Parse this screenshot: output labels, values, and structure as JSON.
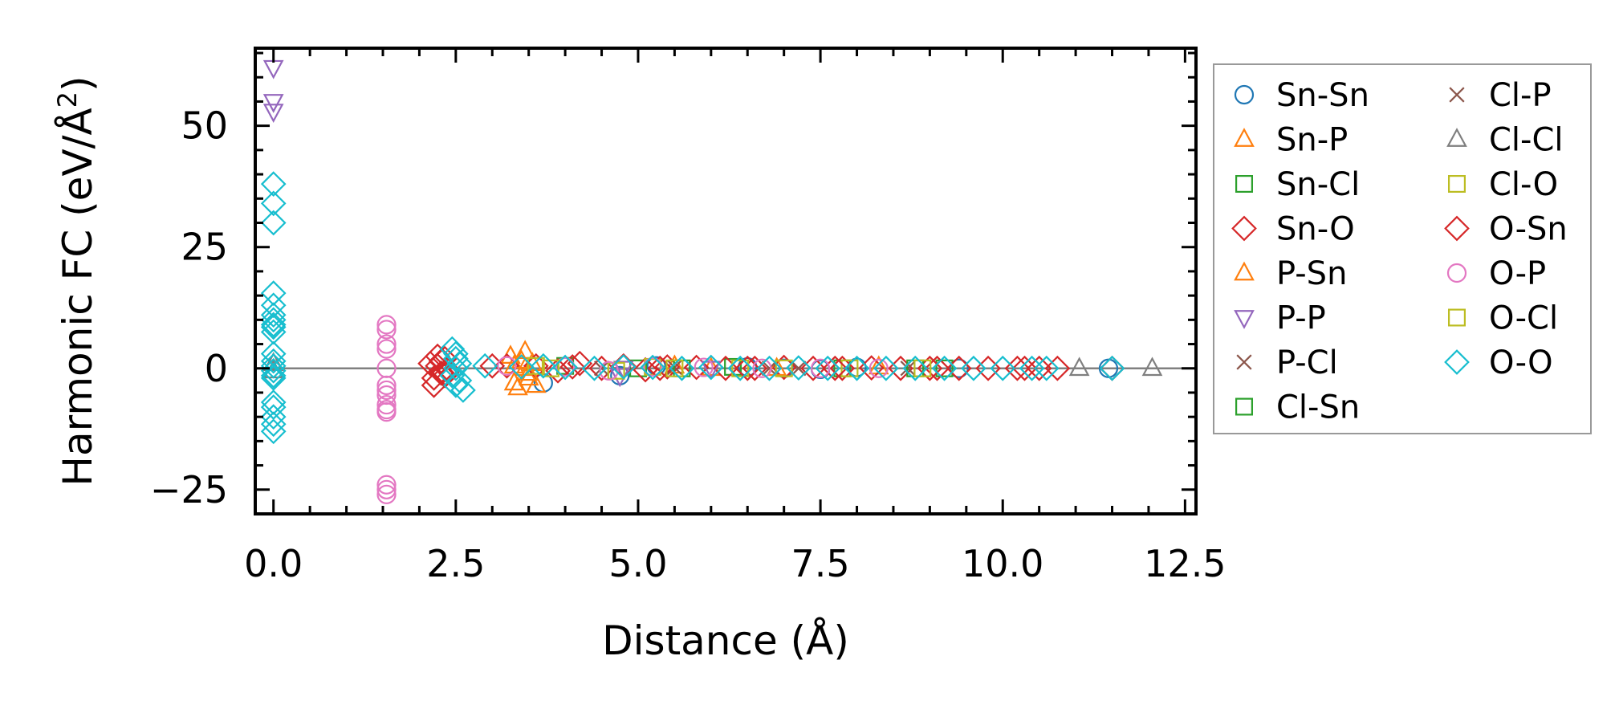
{
  "chart_data": {
    "type": "scatter",
    "title": "",
    "xlabel": "Distance (Å)",
    "ylabel": "Harmonic FC (eV/Å",
    "ylabel_sup": "2",
    "ylabel_close": ")",
    "xlim": [
      -0.25,
      12.65
    ],
    "ylim": [
      -30,
      66
    ],
    "xticks": [
      0.0,
      2.5,
      5.0,
      7.5,
      10.0,
      12.5
    ],
    "xtick_labels": [
      "0.0",
      "2.5",
      "5.0",
      "7.5",
      "10.0",
      "12.5"
    ],
    "yticks": [
      -25,
      0,
      25,
      50
    ],
    "ytick_labels": [
      "−25",
      "0",
      "25",
      "50"
    ],
    "zero_line": 0,
    "legend_position": "outside-right",
    "legend_columns": 2,
    "series": [
      {
        "name": "Sn-Sn",
        "marker": "circle",
        "color": "#1f77b4",
        "x": [
          3.7,
          4.75,
          5.25,
          6.5,
          7.0,
          7.5,
          8.0,
          9.4,
          11.45
        ],
        "y": [
          -3.0,
          -1.5,
          0.5,
          0.3,
          0,
          -0.2,
          0.2,
          0,
          0
        ]
      },
      {
        "name": "Sn-P",
        "marker": "triangle-up",
        "color": "#ff7f0e",
        "x": [
          3.25,
          3.3,
          3.35,
          3.45,
          3.5,
          3.55,
          3.6,
          3.3,
          3.45,
          5.5,
          6.0,
          8.3
        ],
        "y": [
          2.5,
          -3.0,
          -4.0,
          3.5,
          -2.0,
          1.0,
          -3.5,
          0.5,
          0,
          0.5,
          0,
          0.3
        ]
      },
      {
        "name": "Sn-Cl",
        "marker": "square",
        "color": "#2ca02c",
        "x": [
          4.0,
          5.0,
          6.3,
          7.8,
          9.2
        ],
        "y": [
          0.5,
          0,
          0.3,
          0,
          0
        ]
      },
      {
        "name": "Sn-O",
        "marker": "diamond",
        "color": "#d62728",
        "x": [
          2.15,
          2.2,
          2.25,
          2.3,
          2.35,
          2.2,
          2.3,
          2.4,
          3.2,
          3.6,
          3.9,
          4.2,
          4.5,
          4.8,
          5.1,
          5.4,
          5.8,
          6.2,
          6.6,
          7.0,
          7.4,
          7.8,
          8.2,
          8.6,
          9.0,
          9.4,
          9.8,
          10.2,
          10.5,
          10.75,
          11.5
        ],
        "y": [
          1.0,
          -2.0,
          0.5,
          -1.0,
          2.0,
          -3.5,
          1.5,
          -0.5,
          0.5,
          0.5,
          -0.5,
          1.0,
          0,
          0.5,
          -0.3,
          0.3,
          0.2,
          0,
          0,
          0.2,
          0,
          0,
          0.1,
          0,
          0,
          0,
          0,
          0,
          0,
          0,
          0
        ]
      },
      {
        "name": "P-Sn",
        "marker": "triangle-up",
        "color": "#ff7f0e",
        "x": [
          3.4,
          3.5,
          6.9
        ],
        "y": [
          1.5,
          -1.0,
          0
        ]
      },
      {
        "name": "P-P",
        "marker": "triangle-down",
        "color": "#9467bd",
        "x": [
          0.0,
          0.0,
          0.0,
          4.75,
          4.8,
          6.0
        ],
        "y": [
          62.0,
          55.0,
          53.0,
          -1.5,
          0,
          0
        ]
      },
      {
        "name": "P-Cl",
        "marker": "x",
        "color": "#8c564b",
        "x": [
          4.5,
          5.5,
          7.2,
          8.7
        ],
        "y": [
          0,
          0.2,
          0,
          0
        ]
      },
      {
        "name": "Cl-Sn",
        "marker": "square",
        "color": "#2ca02c",
        "x": [
          5.6,
          8.8
        ],
        "y": [
          0,
          0
        ]
      },
      {
        "name": "Cl-P",
        "marker": "x",
        "color": "#8c564b",
        "x": [
          6.8
        ],
        "y": [
          0
        ]
      },
      {
        "name": "Cl-Cl",
        "marker": "triangle-up",
        "color": "#7f7f7f",
        "x": [
          0.0,
          0.0,
          11.05,
          12.05
        ],
        "y": [
          1.0,
          -0.5,
          0,
          0
        ]
      },
      {
        "name": "Cl-O",
        "marker": "square",
        "color": "#bcbd22",
        "x": [
          3.6,
          4.7,
          5.2,
          6.4,
          7.9
        ],
        "y": [
          0.5,
          -0.5,
          0.3,
          0,
          0
        ]
      },
      {
        "name": "O-Sn",
        "marker": "diamond",
        "color": "#d62728",
        "x": [
          2.25,
          2.35,
          3.0,
          4.1,
          5.3,
          6.5,
          7.7,
          9.1,
          10.3
        ],
        "y": [
          2.5,
          -1.5,
          0.5,
          0.3,
          0,
          0,
          0,
          0,
          0
        ]
      },
      {
        "name": "O-P",
        "marker": "circle",
        "color": "#e377c2",
        "x": [
          1.55,
          1.55,
          1.55,
          1.55,
          1.55,
          1.55,
          1.55,
          1.55,
          1.55,
          1.55,
          1.55,
          1.55,
          1.55,
          1.55,
          3.2,
          4.0,
          4.6,
          5.2,
          5.9,
          6.7,
          7.5,
          8.3
        ],
        "y": [
          9.0,
          8.0,
          5.0,
          4.0,
          0.0,
          -3.5,
          -4.5,
          -5.5,
          -7.5,
          -8.5,
          -9.0,
          -24.0,
          -25.0,
          -26.0,
          0.5,
          0.3,
          -0.5,
          0.3,
          0.2,
          0,
          0,
          0
        ]
      },
      {
        "name": "O-Cl",
        "marker": "square",
        "color": "#bcbd22",
        "x": [
          3.8,
          5.5,
          7.0,
          8.9
        ],
        "y": [
          0,
          0,
          0,
          0
        ]
      },
      {
        "name": "O-O",
        "marker": "diamond",
        "color": "#17becf",
        "x": [
          0.0,
          0.0,
          0.0,
          0.0,
          0.0,
          0.0,
          0.0,
          0.0,
          0.0,
          0.0,
          0.0,
          0.0,
          0.0,
          0.0,
          0.0,
          0.0,
          0.0,
          0.0,
          0.0,
          0.0,
          0.0,
          2.45,
          2.5,
          2.5,
          2.55,
          2.5,
          2.45,
          2.55,
          2.5,
          2.6,
          2.9,
          3.4,
          3.7,
          4.0,
          4.4,
          4.8,
          5.2,
          5.6,
          6.0,
          6.4,
          6.8,
          7.2,
          7.6,
          8.0,
          8.4,
          8.8,
          9.2,
          9.6,
          10.0,
          10.4,
          10.6,
          11.5
        ],
        "y": [
          38.0,
          34.0,
          30.0,
          15.5,
          13.0,
          11.0,
          10.0,
          9.0,
          8.5,
          7.5,
          3.0,
          1.5,
          0.5,
          -0.5,
          -1.5,
          -2.0,
          -7.0,
          -8.0,
          -10.0,
          -11.5,
          -13.0,
          4.0,
          3.0,
          2.0,
          1.0,
          0,
          -1.5,
          -2.5,
          -3.5,
          -4.5,
          0.5,
          0.3,
          0.5,
          0.2,
          0,
          0.3,
          0.2,
          0,
          0.2,
          0,
          0,
          0.1,
          0,
          0,
          0,
          0,
          0,
          0,
          0,
          0,
          0,
          0
        ]
      }
    ]
  }
}
